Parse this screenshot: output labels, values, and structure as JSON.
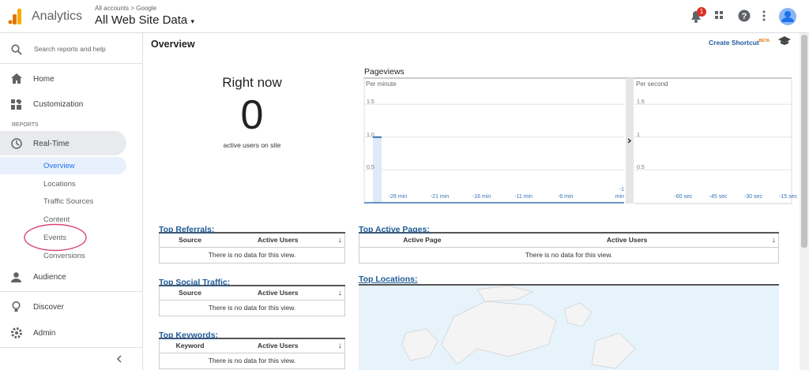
{
  "header": {
    "app_name": "Analytics",
    "breadcrumb": [
      "All accounts",
      "Google"
    ],
    "view": "All Web Site Data",
    "notification_count": 1
  },
  "sidebar": {
    "search": "Search reports and help",
    "items": [
      "Home",
      "Customization"
    ],
    "section": "REPORTS",
    "realtime": {
      "label": "Real-Time",
      "subitems": [
        "Overview",
        "Locations",
        "Traffic Sources",
        "Content",
        "Events",
        "Conversions"
      ]
    },
    "bottom": [
      "Audience",
      "Discover",
      "Admin"
    ]
  },
  "main": {
    "title": "Overview",
    "shortcut": "Create Shortcut",
    "shortcut_badge": "BETA",
    "right_now": {
      "title": "Right now",
      "active_users": 0,
      "caption": "active users on site"
    },
    "pageviews": {
      "title": "Pageviews",
      "per_minute": {
        "label": "Per minute",
        "ylim": [
          0,
          1.9
        ],
        "yticks": [
          {
            "value": 1.5,
            "label": "1.5"
          },
          {
            "value": 1,
            "label": "1.0"
          },
          {
            "value": 0.5,
            "label": "0.5"
          }
        ],
        "xticks": [
          "-26 min",
          "-21 min",
          "-16 min",
          "-11 min",
          "-6 min",
          "-1 min"
        ],
        "values": [
          1
        ]
      },
      "per_second": {
        "label": "Per second",
        "ylim": [
          0,
          1.9
        ],
        "yticks": [
          1.5,
          1,
          0.5
        ],
        "xticks": [
          "-60 sec",
          "-45 sec",
          "-30 sec",
          "-15 sec"
        ]
      }
    },
    "tables": [
      {
        "title": "Top Referrals:",
        "columns": [
          "Source",
          "Active Users"
        ],
        "empty": "There is no data for this view."
      },
      {
        "title": "Top Social Traffic:",
        "columns": [
          "Source",
          "Active Users"
        ],
        "empty": "There is no data for this view."
      },
      {
        "title": "Top Keywords:",
        "columns": [
          "Keyword",
          "Active Users"
        ],
        "empty": "There is no data for this view."
      },
      {
        "title": "Top Active Pages:",
        "columns": [
          "Active Page",
          "Active Users"
        ],
        "empty": "There is no data for this view."
      }
    ],
    "locations_title": "Top Locations:"
  }
}
